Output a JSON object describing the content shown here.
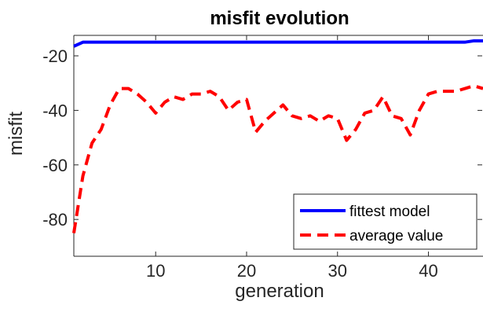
{
  "chart_data": {
    "type": "line",
    "title": "misfit evolution",
    "xlabel": "generation",
    "ylabel": "misfit",
    "xlim": [
      1,
      46
    ],
    "ylim": [
      -93.5,
      -12.5
    ],
    "x_ticks": [
      10,
      20,
      30,
      40
    ],
    "y_ticks": [
      -80,
      -60,
      -40,
      -20
    ],
    "grid": false,
    "legend_position": "bottom-right",
    "x": [
      1,
      2,
      3,
      4,
      5,
      6,
      7,
      8,
      9,
      10,
      11,
      12,
      13,
      14,
      15,
      16,
      17,
      18,
      19,
      20,
      21,
      22,
      23,
      24,
      25,
      26,
      27,
      28,
      29,
      30,
      31,
      32,
      33,
      34,
      35,
      36,
      37,
      38,
      39,
      40,
      41,
      42,
      43,
      44,
      45,
      46
    ],
    "series": [
      {
        "name": "fittest model",
        "color": "#0000ff",
        "style": "solid",
        "values": [
          -16.5,
          -15,
          -15,
          -15,
          -15,
          -15,
          -15,
          -15,
          -15,
          -15,
          -15,
          -15,
          -15,
          -15,
          -15,
          -15,
          -15,
          -15,
          -15,
          -15,
          -15,
          -15,
          -15,
          -15,
          -15,
          -15,
          -15,
          -15,
          -15,
          -15,
          -15,
          -15,
          -15,
          -15,
          -15,
          -15,
          -15,
          -15,
          -15,
          -15,
          -15,
          -15,
          -15,
          -15,
          -14.5,
          -14.5
        ]
      },
      {
        "name": "average value",
        "color": "#ff0000",
        "style": "dashed",
        "values": [
          -85,
          -64,
          -52,
          -47,
          -38,
          -32,
          -32,
          -34,
          -37,
          -41,
          -37,
          -35,
          -36,
          -34,
          -34,
          -33,
          -35,
          -40,
          -37,
          -36,
          -48,
          -44,
          -41,
          -38,
          -42,
          -43,
          -42,
          -44,
          -42,
          -43,
          -51,
          -47,
          -41,
          -40,
          -35,
          -42,
          -43,
          -49,
          -40,
          -34,
          -33,
          -33,
          -33,
          -32,
          -31,
          -32
        ]
      }
    ]
  }
}
